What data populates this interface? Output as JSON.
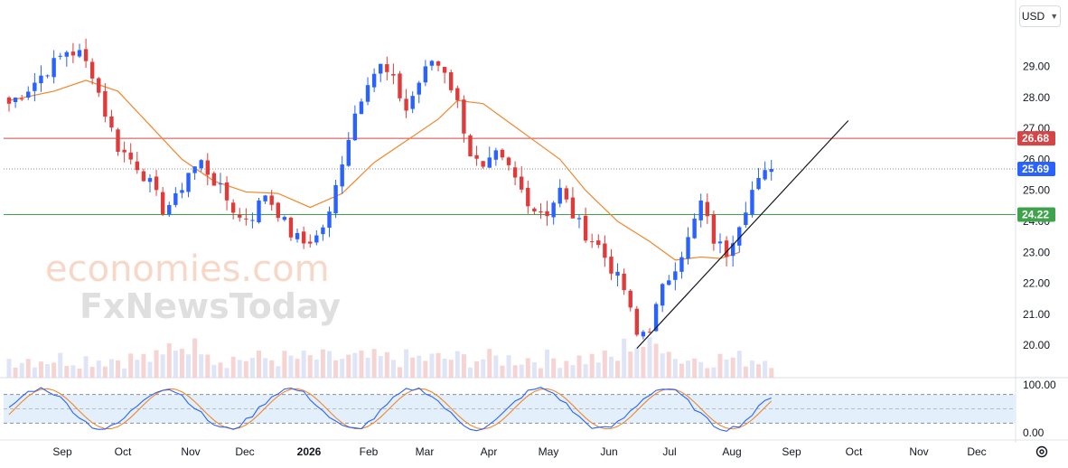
{
  "toolbar": {
    "currency": "USD"
  },
  "watermark": {
    "line1": "economies.com",
    "line2": "FxNewsToday"
  },
  "colors": {
    "up": "#2962ff",
    "down": "#e03b3b",
    "ma": "#f2862b",
    "resistance": "#d64545",
    "support": "#3fa34d",
    "last_price": "#2962ff",
    "stoch_k": "#2962ff",
    "stoch_d": "#f2862b",
    "stoch_band": "#e3f0fb"
  },
  "chart_data": {
    "type": "candlestick",
    "price_axis": {
      "ylim": [
        19.8,
        29.6
      ],
      "ticks": [
        "20.00",
        "21.00",
        "22.00",
        "23.00",
        "24.00",
        "25.00",
        "26.00",
        "27.00",
        "28.00",
        "29.00"
      ]
    },
    "time_axis": {
      "labels": [
        "Sep",
        "Oct",
        "Nov",
        "Dec",
        "2026",
        "Feb",
        "Mar",
        "Apr",
        "May",
        "Jun",
        "Jul",
        "Aug",
        "Sep",
        "Oct",
        "Nov",
        "Dec"
      ]
    },
    "price_path": [
      [
        0,
        27.8
      ],
      [
        3,
        28.3
      ],
      [
        6,
        28.9
      ],
      [
        9,
        29.5
      ],
      [
        11,
        29.4
      ],
      [
        13,
        28.8
      ],
      [
        15,
        27.5
      ],
      [
        17,
        26.4
      ],
      [
        20,
        25.8
      ],
      [
        22,
        25.2
      ],
      [
        24,
        24.4
      ],
      [
        26,
        24.7
      ],
      [
        28,
        25.6
      ],
      [
        30,
        25.9
      ],
      [
        32,
        25.3
      ],
      [
        34,
        24.7
      ],
      [
        36,
        24.1
      ],
      [
        38,
        24.2
      ],
      [
        40,
        24.9
      ],
      [
        42,
        24.3
      ],
      [
        44,
        23.6
      ],
      [
        46,
        23.3
      ],
      [
        48,
        23.5
      ],
      [
        50,
        24.2
      ],
      [
        52,
        26.0
      ],
      [
        54,
        27.5
      ],
      [
        56,
        28.6
      ],
      [
        58,
        29.0
      ],
      [
        60,
        28.5
      ],
      [
        62,
        27.6
      ],
      [
        64,
        28.5
      ],
      [
        66,
        29.2
      ],
      [
        68,
        28.9
      ],
      [
        70,
        27.8
      ],
      [
        72,
        26.2
      ],
      [
        74,
        25.6
      ],
      [
        76,
        26.1
      ],
      [
        78,
        25.7
      ],
      [
        80,
        25.0
      ],
      [
        82,
        24.4
      ],
      [
        84,
        24.3
      ],
      [
        86,
        25.0
      ],
      [
        88,
        24.2
      ],
      [
        90,
        23.6
      ],
      [
        92,
        23.2
      ],
      [
        94,
        22.5
      ],
      [
        96,
        21.8
      ],
      [
        98,
        20.3
      ],
      [
        100,
        20.6
      ],
      [
        102,
        21.8
      ],
      [
        104,
        22.6
      ],
      [
        106,
        23.4
      ],
      [
        108,
        24.6
      ],
      [
        110,
        23.4
      ],
      [
        112,
        23.0
      ],
      [
        114,
        24.0
      ],
      [
        116,
        25.0
      ],
      [
        118,
        25.5
      ],
      [
        119,
        25.69
      ]
    ],
    "moving_average": [
      [
        0,
        27.9
      ],
      [
        7,
        28.2
      ],
      [
        12,
        28.55
      ],
      [
        17,
        28.2
      ],
      [
        22,
        27.1
      ],
      [
        27,
        26.0
      ],
      [
        32,
        25.3
      ],
      [
        37,
        24.95
      ],
      [
        42,
        24.9
      ],
      [
        47,
        24.45
      ],
      [
        52,
        24.9
      ],
      [
        57,
        25.9
      ],
      [
        62,
        26.6
      ],
      [
        67,
        27.3
      ],
      [
        70,
        27.9
      ],
      [
        74,
        27.8
      ],
      [
        78,
        27.2
      ],
      [
        82,
        26.6
      ],
      [
        86,
        26.0
      ],
      [
        90,
        25.0
      ],
      [
        95,
        24.0
      ],
      [
        100,
        23.35
      ],
      [
        104,
        22.75
      ],
      [
        108,
        22.85
      ],
      [
        111,
        22.8
      ],
      [
        114,
        23.0
      ]
    ],
    "resistance_level": 26.68,
    "support_level": 24.22,
    "last_price": 25.69,
    "trendline": {
      "start": {
        "bar": 98,
        "price": 19.9
      },
      "end": {
        "bar": 131,
        "price": 27.25
      }
    },
    "stochastic": {
      "ylim": [
        0,
        100
      ],
      "ticks": [
        "100.00",
        "0.00"
      ],
      "upper_band": 80,
      "lower_band": 20
    },
    "price_tags": [
      "26.68",
      "25.69",
      "24.22"
    ]
  }
}
